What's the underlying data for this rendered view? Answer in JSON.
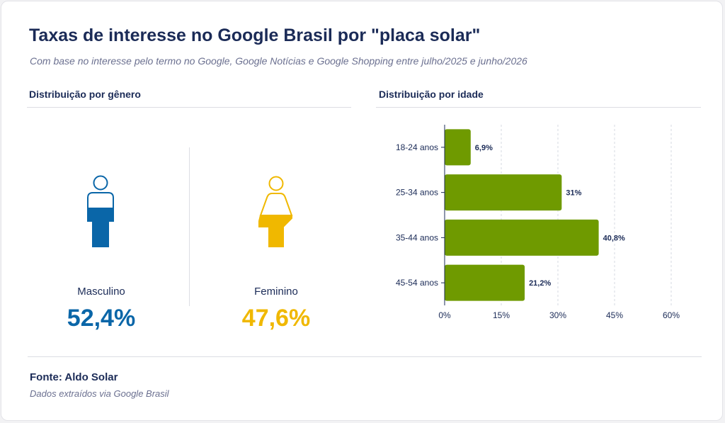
{
  "title": "Taxas de interesse no Google Brasil por \"placa solar\"",
  "subtitle": "Com base no interesse pelo termo no Google, Google Notícias e Google Shopping entre julho/2025 e junho/2026",
  "gender": {
    "heading": "Distribuição por gênero",
    "male": {
      "label": "Masculino",
      "value": "52,4%",
      "share": 52.4,
      "color": "#0a66a8",
      "icon": "male-person-icon"
    },
    "female": {
      "label": "Feminino",
      "value": "47,6%",
      "share": 47.6,
      "color": "#f0b800",
      "icon": "female-person-icon"
    }
  },
  "age": {
    "heading": "Distribuição por idade"
  },
  "chart_data": {
    "type": "bar",
    "orientation": "horizontal",
    "categories": [
      "18-24 anos",
      "25-34 anos",
      "35-44 anos",
      "45-54 anos"
    ],
    "values": [
      6.9,
      31,
      40.8,
      21.2
    ],
    "value_labels": [
      "6,9%",
      "31%",
      "40,8%",
      "21,2%"
    ],
    "xlim": [
      0,
      60
    ],
    "xticks": [
      "0%",
      "15%",
      "30%",
      "45%",
      "60%"
    ],
    "grid": "vertical dashed",
    "bar_color": "#6f9a00"
  },
  "footer": {
    "source": "Fonte: Aldo Solar",
    "note": "Dados extraídos via Google Brasil"
  }
}
